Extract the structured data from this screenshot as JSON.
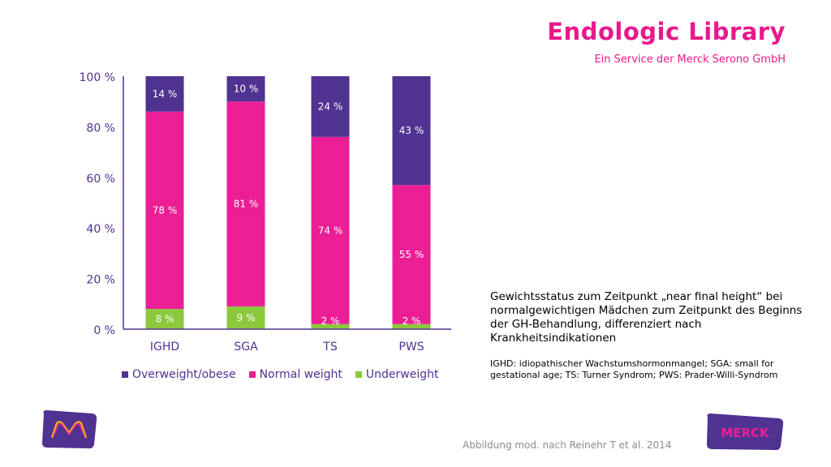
{
  "brand": {
    "title": "Endologic Library",
    "subtitle": "Ein Service der Merck Serono GmbH",
    "merck_wordmark": "MERCK"
  },
  "caption": {
    "main": "Gewichtsstatus zum Zeitpunkt „near final height“ bei normalgewichtigen Mädchen zum Zeitpunkt des Beginns der GH-Behandlung, differenziert nach Krankheitsindikationen",
    "note": "IGHD: idiopathischer Wachstumshormonmangel; SGA: small for gestational age; TS: Turner Syndrom; PWS: Prader-Willi-Syndrom"
  },
  "source": "Abbildung mod. nach Reinehr T et al. 2014",
  "colors": {
    "overweight": "#503291",
    "normal": "#eb1e96",
    "underweight": "#8cc83c",
    "axis": "#503291"
  },
  "chart_data": {
    "type": "bar",
    "stacked": true,
    "categories": [
      "IGHD",
      "SGA",
      "TS",
      "PWS"
    ],
    "ylim": [
      0,
      100
    ],
    "yticks": [
      0,
      20,
      40,
      60,
      80,
      100
    ],
    "ytick_labels": [
      "0 %",
      "20 %",
      "40 %",
      "60 %",
      "80 %",
      "100 %"
    ],
    "legend_position": "bottom",
    "series": [
      {
        "name": "Underweight",
        "color": "#8cc83c",
        "values": [
          8,
          9,
          2,
          2
        ],
        "labels": [
          "8 %",
          "9 %",
          "2 %",
          "2 %"
        ]
      },
      {
        "name": "Normal weight",
        "color": "#eb1e96",
        "values": [
          78,
          81,
          74,
          55
        ],
        "labels": [
          "78 %",
          "81 %",
          "74 %",
          "55 %"
        ]
      },
      {
        "name": "Overweight/obese",
        "color": "#503291",
        "values": [
          14,
          10,
          24,
          43
        ],
        "labels": [
          "14 %",
          "10 %",
          "24 %",
          "43 %"
        ]
      }
    ],
    "legend_order": [
      "Overweight/obese",
      "Normal weight",
      "Underweight"
    ]
  }
}
